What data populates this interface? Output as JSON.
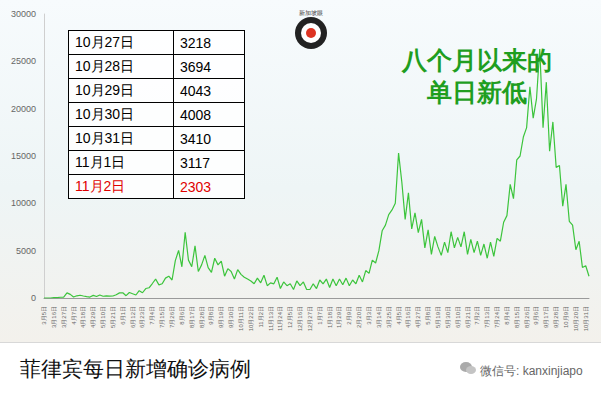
{
  "chart_data": {
    "type": "line",
    "title": "八个月以来的\n单日新低",
    "caption": "菲律宾每日新增确诊病例",
    "source": "微信号: kanxinjiapo",
    "logo": "新加坡眼",
    "color": "#3cc43c",
    "grid": false,
    "ylim": [
      0,
      30000
    ],
    "yticks": [
      0,
      5000,
      10000,
      15000,
      20000,
      25000,
      30000
    ],
    "table": [
      {
        "date": "10月27日",
        "value": 3218,
        "color": "#000000"
      },
      {
        "date": "10月28日",
        "value": 3694,
        "color": "#000000"
      },
      {
        "date": "10月29日",
        "value": 4043,
        "color": "#000000"
      },
      {
        "date": "10月30日",
        "value": 4008,
        "color": "#000000"
      },
      {
        "date": "10月31日",
        "value": 3410,
        "color": "#000000"
      },
      {
        "date": "11月1日",
        "value": 3117,
        "color": "#000000"
      },
      {
        "date": "11月2日",
        "value": 2303,
        "color": "#e00000"
      }
    ],
    "categories": [
      "3月5日",
      null,
      null,
      "3月16日",
      null,
      null,
      "3月27日",
      null,
      null,
      "4月7日",
      null,
      null,
      "4月18日",
      null,
      null,
      "4月29日",
      null,
      null,
      "5月10日",
      null,
      null,
      "5月21日",
      null,
      null,
      "6月1日",
      null,
      null,
      "6月12日",
      null,
      null,
      "6月23日",
      null,
      null,
      "7月4日",
      null,
      null,
      "7月15日",
      null,
      null,
      "7月26日",
      null,
      null,
      "8月6日",
      null,
      null,
      "8月17日",
      null,
      null,
      "8月28日",
      null,
      null,
      "9月8日",
      null,
      null,
      "9月19日",
      null,
      null,
      "9月30日",
      null,
      null,
      "10月11日",
      null,
      null,
      "10月22日",
      null,
      null,
      "11月2日",
      null,
      null,
      "11月13日",
      null,
      null,
      "11月24日",
      null,
      null,
      "12月5日",
      null,
      null,
      "12月16日",
      null,
      null,
      "12月27日",
      null,
      null,
      "1月7日",
      null,
      null,
      "1月18日",
      null,
      null,
      "1月29日",
      null,
      null,
      "2月9日",
      null,
      null,
      "2月20日",
      null,
      null,
      "3月3日",
      null,
      null,
      "3月14日",
      null,
      null,
      "3月25日",
      null,
      null,
      "4月5日",
      null,
      null,
      "4月16日",
      null,
      null,
      "4月27日",
      null,
      null,
      "5月8日",
      null,
      null,
      "5月19日",
      null,
      null,
      "5月30日",
      null,
      null,
      "6月10日",
      null,
      null,
      "6月21日",
      null,
      null,
      "7月2日",
      null,
      null,
      "7月13日",
      null,
      null,
      "7月24日",
      null,
      null,
      "8月4日",
      null,
      null,
      "8月15日",
      null,
      null,
      "8月26日",
      null,
      null,
      "9月6日",
      null,
      null,
      "9月17日",
      null,
      null,
      "9月28日",
      null,
      null,
      "10月9日",
      null,
      null,
      "10月20日",
      null,
      null,
      "10月31日",
      null
    ],
    "values": [
      0,
      0,
      2,
      45,
      40,
      80,
      100,
      540,
      385,
      100,
      233,
      291,
      209,
      140,
      102,
      276,
      156,
      320,
      184,
      215,
      208,
      213,
      350,
      539,
      552,
      244,
      579,
      443,
      317,
      767,
      555,
      1000,
      1080,
      1530,
      2000,
      1387,
      1500,
      2100,
      2300,
      1900,
      3950,
      5030,
      3300,
      6950,
      4000,
      3300,
      5500,
      2800,
      3500,
      4500,
      3200,
      2700,
      4200,
      3500,
      3900,
      2300,
      3100,
      2800,
      2000,
      3000,
      2500,
      2200,
      2000,
      1800,
      1500,
      2100,
      1600,
      2400,
      1300,
      1600,
      1500,
      2200,
      1000,
      1700,
      1300,
      1500,
      900,
      1800,
      1300,
      1700,
      900,
      900,
      1500,
      1000,
      1900,
      1500,
      2000,
      1100,
      2000,
      1300,
      2000,
      1400,
      2100,
      1300,
      1900,
      1500,
      2400,
      1700,
      2900,
      2600,
      4000,
      3700,
      5000,
      7100,
      7700,
      8800,
      9300,
      10000,
      15300,
      12200,
      8300,
      11100,
      7300,
      9000,
      6900,
      8300,
      5300,
      7200,
      4600,
      6500,
      5400,
      4500,
      5900,
      4800,
      7000,
      5300,
      6400,
      5400,
      7000,
      4600,
      6200,
      4800,
      6000,
      4500,
      5700,
      4200,
      5900,
      4400,
      6300,
      6000,
      8000,
      8700,
      12000,
      10500,
      14600,
      15000,
      17000,
      18000,
      22300,
      19000,
      21000,
      26300,
      18000,
      22800,
      15500,
      18600,
      13800,
      14000,
      9700,
      12000,
      8100,
      7700,
      5100,
      6000,
      3218,
      3410,
      2303
    ]
  }
}
